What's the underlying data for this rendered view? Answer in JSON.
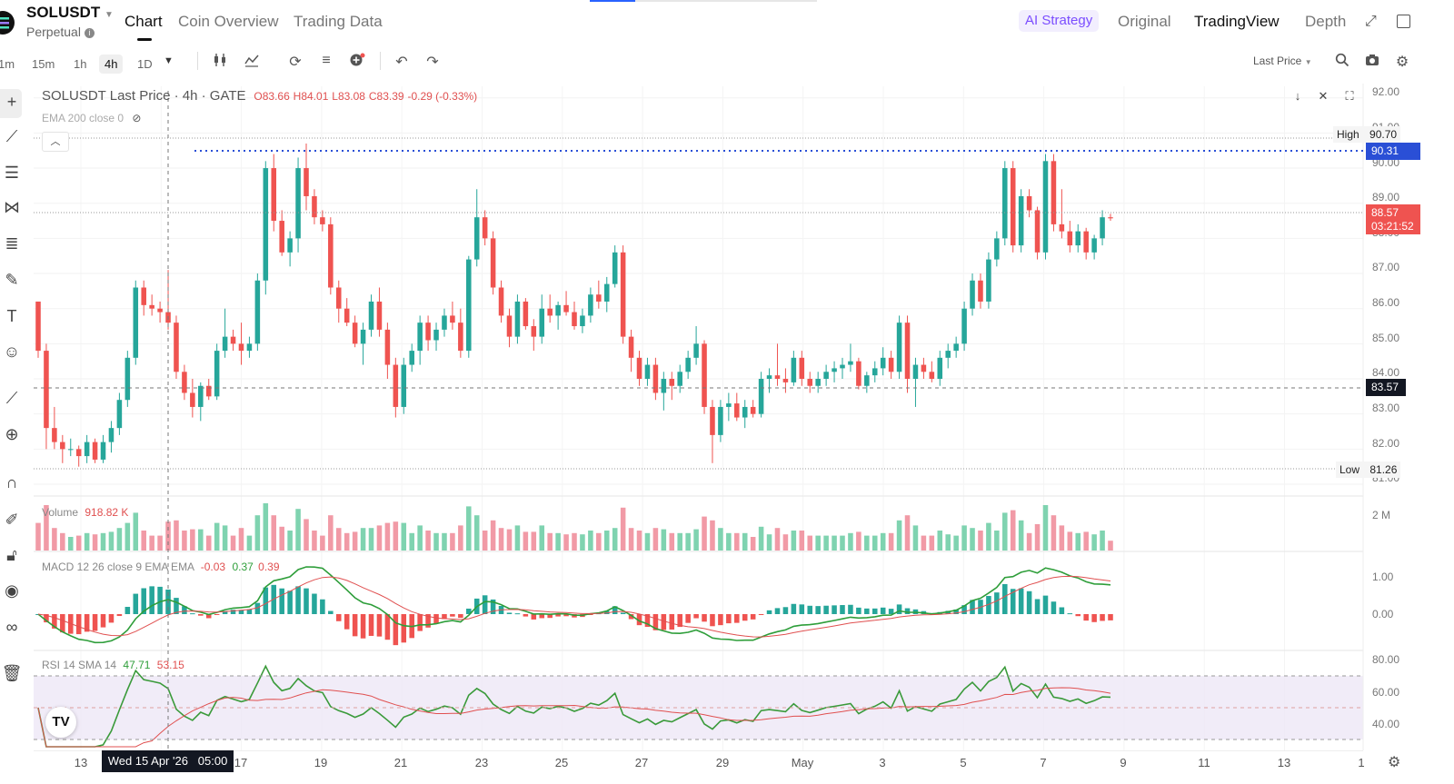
{
  "header": {
    "symbol": "SOLUSDT",
    "contract_type": "Perpetual",
    "tabs": [
      "Chart",
      "Coin Overview",
      "Trading Data"
    ],
    "active_tab": "Chart",
    "right_tabs": [
      "AI Strategy",
      "Original",
      "TradingView",
      "Depth"
    ]
  },
  "toolbar": {
    "timeframes": [
      "1m",
      "15m",
      "1h",
      "4h",
      "1D"
    ],
    "selected_timeframe": "4h",
    "price_source": "Last Price"
  },
  "legend": {
    "title": "SOLUSDT Last Price · 4h · GATE",
    "open": "O83.66",
    "high": "H84.01",
    "low": "L83.08",
    "close": "C83.39",
    "change": "-0.29 (-0.33%)",
    "ema_label": "EMA 200 close 0"
  },
  "price_axis": {
    "labels": [
      "92.00",
      "91.00",
      "90.00",
      "89.00",
      "88.00",
      "87.00",
      "86.00",
      "85.00",
      "84.00",
      "83.00",
      "82.00",
      "81.00"
    ],
    "high_label": "High",
    "high_value": "90.70",
    "dotted_level": "90.31",
    "current_price": "88.57",
    "countdown": "03:21:52",
    "crosshair_price": "83.57",
    "low_label": "Low",
    "low_value": "81.26"
  },
  "volume": {
    "label": "Volume",
    "value": "918.82 K",
    "axis_label": "2 M"
  },
  "macd": {
    "label": "MACD 12 26 close 9 EMA EMA",
    "histogram": "-0.03",
    "macd_value": "0.37",
    "signal_value": "0.39",
    "axis_labels": [
      "1.00",
      "0.00"
    ]
  },
  "rsi": {
    "label": "RSI 14 SMA 14",
    "rsi_value": "47.71",
    "sma_value": "53.15",
    "axis_labels": [
      "80.00",
      "60.00",
      "40.00"
    ]
  },
  "time_axis": {
    "labels": [
      "13",
      "17",
      "19",
      "21",
      "23",
      "25",
      "27",
      "29",
      "May",
      "3",
      "5",
      "7",
      "9",
      "11",
      "13",
      "1"
    ],
    "crosshair_time": "Wed 15 Apr '26   05:00"
  },
  "colors": {
    "up": "#26a69a",
    "down": "#ef5350",
    "macd_line": "#2e9e3a",
    "signal_line": "#e05050",
    "rsi_line": "#3a9a3a",
    "rsi_band": "#ede7f6",
    "accent": "#2962ff",
    "ai_strategy": "#7b4dff"
  },
  "icons": {
    "left_toolbar": [
      "crosshair-icon",
      "trendline-icon",
      "horizontal-lines-icon",
      "pattern-icon",
      "fib-icon",
      "brush-icon",
      "text-icon",
      "emoji-icon",
      "ruler-icon",
      "zoom-in-icon",
      "magnet-icon",
      "pencil-lock-icon",
      "lock-icon",
      "eye-icon",
      "link-icon",
      "trash-icon"
    ]
  },
  "chart_data": {
    "type": "candlestick",
    "symbol": "SOLUSDT",
    "interval": "4h",
    "ylim": [
      81.0,
      92.2
    ],
    "x_range": [
      "Apr 12 2026",
      "May 15 2026"
    ],
    "crosshair_x": "Wed 15 Apr '26 05:00",
    "candles_ohlc": [
      [
        86.2,
        86.2,
        84.6,
        84.8
      ],
      [
        84.8,
        85.0,
        82.0,
        82.6
      ],
      [
        82.6,
        83.2,
        82.0,
        82.2
      ],
      [
        82.2,
        82.4,
        81.6,
        82.0
      ],
      [
        82.0,
        82.3,
        81.8,
        82.0
      ],
      [
        82.0,
        82.1,
        81.5,
        81.8
      ],
      [
        81.8,
        82.4,
        81.6,
        82.2
      ],
      [
        82.2,
        82.3,
        81.6,
        81.7
      ],
      [
        81.7,
        82.4,
        81.6,
        82.2
      ],
      [
        82.2,
        82.8,
        81.9,
        82.6
      ],
      [
        82.6,
        83.6,
        82.4,
        83.4
      ],
      [
        83.4,
        84.8,
        83.2,
        84.6
      ],
      [
        84.6,
        86.8,
        84.4,
        86.6
      ],
      [
        86.6,
        86.8,
        85.8,
        86.1
      ],
      [
        86.1,
        86.4,
        85.8,
        86.0
      ],
      [
        86.0,
        86.2,
        85.6,
        85.9
      ],
      [
        85.9,
        87.1,
        85.4,
        85.6
      ],
      [
        85.6,
        85.8,
        84.0,
        84.2
      ],
      [
        84.2,
        84.4,
        83.4,
        83.6
      ],
      [
        83.6,
        84.0,
        82.9,
        83.2
      ],
      [
        83.2,
        83.9,
        82.8,
        83.8
      ],
      [
        83.8,
        84.0,
        83.4,
        83.5
      ],
      [
        83.5,
        85.0,
        83.4,
        84.8
      ],
      [
        84.8,
        86.0,
        84.6,
        85.2
      ],
      [
        85.2,
        85.4,
        84.8,
        85.0
      ],
      [
        85.0,
        85.6,
        84.4,
        84.8
      ],
      [
        84.8,
        85.2,
        84.6,
        85.0
      ],
      [
        85.0,
        87.0,
        84.8,
        86.8
      ],
      [
        86.8,
        90.2,
        86.4,
        90.0
      ],
      [
        90.0,
        90.4,
        88.2,
        88.5
      ],
      [
        88.5,
        88.8,
        87.5,
        87.6
      ],
      [
        87.6,
        88.2,
        87.2,
        88.0
      ],
      [
        88.0,
        90.3,
        87.6,
        90.0
      ],
      [
        90.0,
        90.7,
        88.8,
        89.2
      ],
      [
        89.2,
        89.4,
        88.4,
        88.6
      ],
      [
        88.6,
        88.8,
        88.2,
        88.4
      ],
      [
        88.4,
        88.6,
        86.4,
        86.6
      ],
      [
        86.6,
        86.8,
        85.6,
        86.0
      ],
      [
        86.0,
        86.3,
        85.5,
        85.6
      ],
      [
        85.6,
        85.8,
        84.9,
        85.0
      ],
      [
        85.0,
        85.6,
        84.4,
        85.4
      ],
      [
        85.4,
        86.4,
        85.2,
        86.2
      ],
      [
        86.2,
        86.6,
        85.2,
        85.4
      ],
      [
        85.4,
        85.6,
        84.0,
        84.4
      ],
      [
        84.4,
        84.6,
        82.9,
        83.2
      ],
      [
        83.2,
        84.6,
        83.0,
        84.4
      ],
      [
        84.4,
        85.0,
        84.2,
        84.8
      ],
      [
        84.8,
        85.8,
        84.4,
        85.6
      ],
      [
        85.6,
        85.8,
        84.8,
        85.1
      ],
      [
        85.1,
        85.6,
        84.8,
        85.4
      ],
      [
        85.4,
        86.0,
        85.2,
        85.8
      ],
      [
        85.8,
        86.2,
        85.4,
        85.6
      ],
      [
        85.6,
        86.0,
        84.6,
        84.8
      ],
      [
        84.8,
        87.5,
        84.6,
        87.4
      ],
      [
        87.4,
        89.4,
        87.2,
        88.6
      ],
      [
        88.6,
        88.8,
        87.8,
        88.0
      ],
      [
        88.0,
        88.2,
        86.4,
        86.6
      ],
      [
        86.6,
        86.8,
        85.6,
        85.8
      ],
      [
        85.8,
        86.0,
        84.9,
        85.2
      ],
      [
        85.2,
        86.4,
        85.0,
        86.2
      ],
      [
        86.2,
        86.3,
        85.4,
        85.5
      ],
      [
        85.5,
        85.7,
        84.8,
        85.2
      ],
      [
        85.2,
        86.4,
        85.0,
        86.0
      ],
      [
        86.0,
        86.4,
        85.6,
        85.8
      ],
      [
        85.8,
        86.2,
        85.4,
        86.1
      ],
      [
        86.1,
        86.5,
        85.8,
        85.9
      ],
      [
        85.9,
        86.2,
        85.4,
        85.5
      ],
      [
        85.5,
        86.0,
        85.3,
        85.8
      ],
      [
        85.8,
        86.6,
        85.6,
        86.4
      ],
      [
        86.4,
        86.8,
        86.0,
        86.2
      ],
      [
        86.2,
        86.9,
        85.9,
        86.7
      ],
      [
        86.7,
        87.8,
        86.6,
        87.6
      ],
      [
        87.6,
        87.8,
        85.0,
        85.2
      ],
      [
        85.2,
        85.4,
        84.2,
        84.6
      ],
      [
        84.6,
        84.8,
        83.8,
        84.0
      ],
      [
        84.0,
        84.6,
        83.8,
        84.4
      ],
      [
        84.4,
        84.6,
        83.4,
        83.6
      ],
      [
        83.6,
        84.2,
        83.1,
        84.0
      ],
      [
        84.0,
        84.2,
        83.4,
        83.8
      ],
      [
        83.8,
        84.4,
        83.6,
        84.2
      ],
      [
        84.2,
        84.8,
        84.0,
        84.6
      ],
      [
        84.6,
        85.5,
        84.4,
        85.0
      ],
      [
        85.0,
        85.1,
        83.0,
        83.2
      ],
      [
        83.2,
        83.4,
        81.6,
        82.4
      ],
      [
        82.4,
        83.4,
        82.2,
        83.2
      ],
      [
        83.2,
        83.6,
        82.8,
        83.3
      ],
      [
        83.3,
        83.6,
        82.8,
        82.9
      ],
      [
        82.9,
        83.4,
        82.6,
        83.2
      ],
      [
        83.2,
        83.4,
        82.9,
        83.0
      ],
      [
        83.0,
        84.2,
        82.9,
        84.0
      ],
      [
        84.0,
        84.3,
        83.6,
        84.1
      ],
      [
        84.1,
        85.0,
        83.8,
        84.0
      ],
      [
        84.0,
        84.3,
        83.6,
        83.9
      ],
      [
        83.9,
        84.8,
        83.8,
        84.6
      ],
      [
        84.6,
        84.8,
        83.8,
        84.0
      ],
      [
        84.0,
        84.2,
        83.6,
        83.8
      ],
      [
        83.8,
        84.2,
        83.6,
        84.0
      ],
      [
        84.0,
        84.4,
        83.8,
        84.2
      ],
      [
        84.2,
        84.5,
        83.9,
        84.3
      ],
      [
        84.3,
        84.6,
        84.0,
        84.4
      ],
      [
        84.4,
        85.0,
        84.2,
        84.5
      ],
      [
        84.5,
        84.6,
        83.7,
        83.8
      ],
      [
        83.8,
        84.2,
        83.6,
        84.1
      ],
      [
        84.1,
        84.5,
        83.9,
        84.3
      ],
      [
        84.3,
        84.9,
        84.1,
        84.6
      ],
      [
        84.6,
        84.8,
        84.0,
        84.2
      ],
      [
        84.2,
        85.8,
        84.0,
        85.6
      ],
      [
        85.6,
        85.8,
        83.6,
        84.0
      ],
      [
        84.0,
        84.6,
        83.2,
        84.4
      ],
      [
        84.4,
        84.6,
        84.0,
        84.2
      ],
      [
        84.2,
        84.5,
        83.9,
        84.0
      ],
      [
        84.0,
        84.8,
        83.8,
        84.6
      ],
      [
        84.6,
        85.0,
        84.3,
        84.8
      ],
      [
        84.8,
        85.2,
        84.6,
        85.0
      ],
      [
        85.0,
        86.2,
        84.8,
        86.0
      ],
      [
        86.0,
        87.0,
        85.8,
        86.8
      ],
      [
        86.8,
        87.0,
        86.0,
        86.2
      ],
      [
        86.2,
        87.6,
        86.0,
        87.4
      ],
      [
        87.4,
        88.2,
        87.2,
        88.0
      ],
      [
        88.0,
        90.2,
        87.8,
        90.0
      ],
      [
        90.0,
        90.2,
        87.6,
        87.8
      ],
      [
        87.8,
        89.4,
        87.6,
        89.2
      ],
      [
        89.2,
        89.4,
        88.6,
        88.8
      ],
      [
        88.8,
        88.9,
        87.4,
        87.6
      ],
      [
        87.6,
        90.4,
        87.4,
        90.2
      ],
      [
        90.2,
        90.4,
        88.2,
        88.4
      ],
      [
        88.4,
        89.4,
        88.0,
        88.2
      ],
      [
        88.2,
        88.5,
        87.6,
        87.8
      ],
      [
        87.8,
        88.4,
        87.6,
        88.2
      ],
      [
        88.2,
        88.3,
        87.4,
        87.6
      ],
      [
        87.6,
        88.1,
        87.4,
        88.0
      ],
      [
        88.0,
        88.8,
        87.8,
        88.6
      ],
      [
        88.6,
        88.7,
        88.5,
        88.57
      ]
    ]
  }
}
